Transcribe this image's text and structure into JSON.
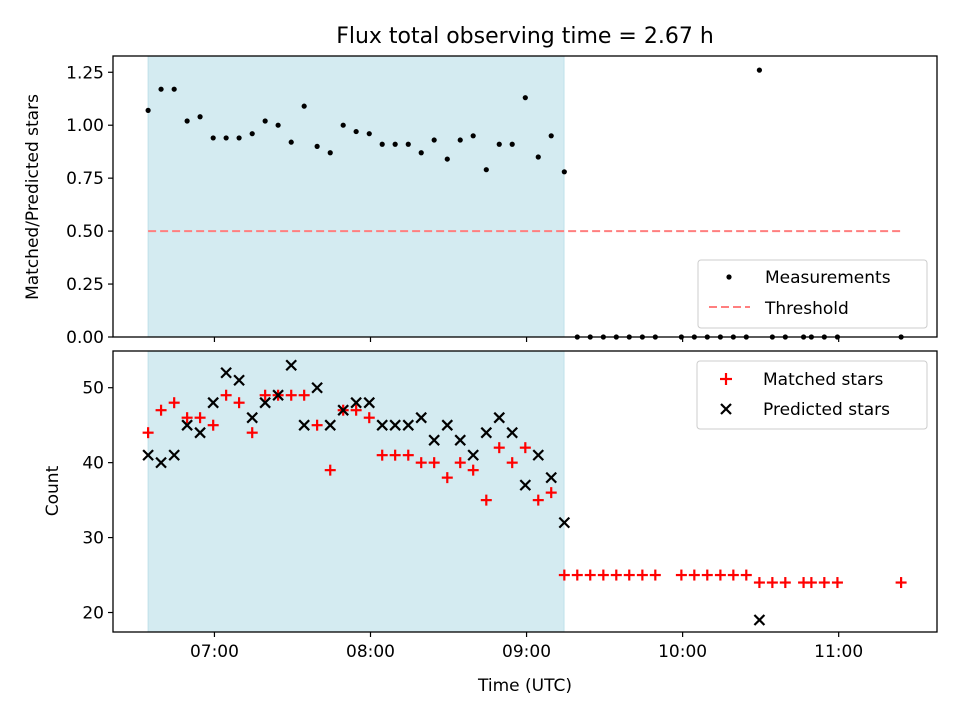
{
  "title": "Flux total observing time = 2.67 h",
  "colors": {
    "shade": "#d4ebf1",
    "measurement": "#000000",
    "threshold": "#ff7f7f",
    "matched": "#ff0000",
    "predicted": "#000000"
  },
  "chart_data": [
    {
      "type": "scatter",
      "ylabel": "Matched/Predicted stars",
      "ylim": [
        0,
        1.3268
      ],
      "xlim_hours": [
        6.35,
        11.63
      ],
      "shaded_interval_hours": [
        6.575,
        9.24
      ],
      "y_ticks": [
        "0.00",
        "0.25",
        "0.50",
        "0.75",
        "1.00",
        "1.25"
      ],
      "legend": {
        "placement": "lower-right",
        "entries": [
          "Measurements",
          "Threshold"
        ]
      },
      "threshold": {
        "name": "Threshold",
        "value": 0.5,
        "x_range_hours": [
          6.575,
          11.4
        ]
      },
      "series": [
        {
          "name": "Measurements",
          "marker": "dot",
          "x_hours": [
            6.575,
            6.658,
            6.742,
            6.825,
            6.908,
            6.992,
            7.075,
            7.158,
            7.242,
            7.325,
            7.408,
            7.492,
            7.575,
            7.658,
            7.742,
            7.825,
            7.908,
            7.992,
            8.075,
            8.158,
            8.242,
            8.325,
            8.408,
            8.492,
            8.575,
            8.658,
            8.742,
            8.825,
            8.908,
            8.992,
            9.075,
            9.158,
            9.242,
            9.325,
            9.408,
            9.492,
            9.575,
            9.658,
            9.742,
            9.825,
            9.992,
            10.075,
            10.158,
            10.242,
            10.325,
            10.408,
            10.492,
            10.575,
            10.658,
            10.775,
            10.825,
            10.908,
            10.992,
            11.4
          ],
          "y": [
            1.07,
            1.17,
            1.17,
            1.02,
            1.04,
            0.94,
            0.94,
            0.94,
            0.96,
            1.02,
            1.0,
            0.92,
            1.09,
            0.9,
            0.87,
            1.0,
            0.97,
            0.96,
            0.91,
            0.91,
            0.91,
            0.87,
            0.93,
            0.84,
            0.93,
            0.95,
            0.79,
            0.91,
            0.91,
            1.13,
            0.85,
            0.95,
            0.78,
            0,
            0,
            0,
            0,
            0,
            0,
            0,
            0,
            0,
            0,
            0,
            0,
            0,
            1.26,
            0,
            0,
            0,
            0,
            0,
            0,
            0
          ]
        }
      ]
    },
    {
      "type": "scatter",
      "xlabel": "Time (UTC)",
      "ylabel": "Count",
      "ylim": [
        17.4,
        54.9
      ],
      "xlim_hours": [
        6.35,
        11.63
      ],
      "shaded_interval_hours": [
        6.575,
        9.24
      ],
      "x_ticks": [
        "07:00",
        "08:00",
        "09:00",
        "10:00",
        "11:00"
      ],
      "y_ticks": [
        "20",
        "30",
        "40",
        "50"
      ],
      "legend": {
        "placement": "upper-right",
        "entries": [
          "Matched stars",
          "Predicted stars"
        ]
      },
      "series": [
        {
          "name": "Matched stars",
          "marker": "plus",
          "x_hours": [
            6.575,
            6.658,
            6.742,
            6.825,
            6.908,
            6.992,
            7.075,
            7.158,
            7.242,
            7.325,
            7.408,
            7.492,
            7.575,
            7.658,
            7.742,
            7.825,
            7.908,
            7.992,
            8.075,
            8.158,
            8.242,
            8.325,
            8.408,
            8.492,
            8.575,
            8.658,
            8.742,
            8.825,
            8.908,
            8.992,
            9.075,
            9.158,
            9.242,
            9.325,
            9.408,
            9.492,
            9.575,
            9.658,
            9.742,
            9.825,
            9.992,
            10.075,
            10.158,
            10.242,
            10.325,
            10.408,
            10.492,
            10.575,
            10.658,
            10.775,
            10.825,
            10.908,
            10.992,
            11.4
          ],
          "y": [
            44,
            47,
            48,
            46,
            46,
            45,
            49,
            48,
            44,
            49,
            49,
            49,
            49,
            45,
            39,
            47,
            47,
            46,
            41,
            41,
            41,
            40,
            40,
            38,
            40,
            39,
            35,
            42,
            40,
            42,
            35,
            36,
            25,
            25,
            25,
            25,
            25,
            25,
            25,
            25,
            25,
            25,
            25,
            25,
            25,
            25,
            24,
            24,
            24,
            24,
            24,
            24,
            24,
            24
          ]
        },
        {
          "name": "Predicted stars",
          "marker": "x",
          "x_hours": [
            6.575,
            6.658,
            6.742,
            6.825,
            6.908,
            6.992,
            7.075,
            7.158,
            7.242,
            7.325,
            7.408,
            7.492,
            7.575,
            7.658,
            7.742,
            7.825,
            7.908,
            7.992,
            8.075,
            8.158,
            8.242,
            8.325,
            8.408,
            8.492,
            8.575,
            8.658,
            8.742,
            8.825,
            8.908,
            8.992,
            9.075,
            9.158,
            9.242,
            10.492
          ],
          "y": [
            41,
            40,
            41,
            45,
            44,
            48,
            52,
            51,
            46,
            48,
            49,
            53,
            45,
            50,
            45,
            47,
            48,
            48,
            45,
            45,
            45,
            46,
            43,
            45,
            43,
            41,
            44,
            46,
            44,
            37,
            41,
            38,
            32,
            19
          ]
        }
      ]
    }
  ]
}
